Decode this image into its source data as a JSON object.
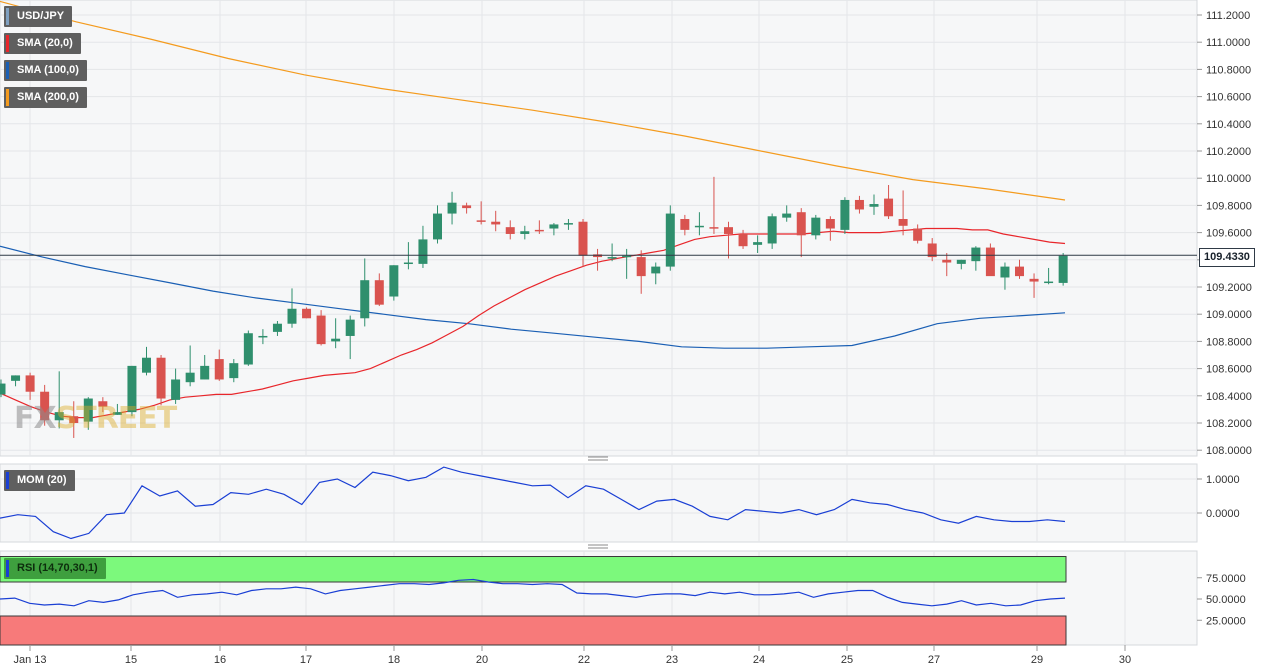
{
  "chart_data": [
    {
      "type": "candlestick",
      "symbol": "USD/JPY",
      "indicators": [
        {
          "name": "SMA (20,0)",
          "color": "#e8262b"
        },
        {
          "name": "SMA (100,0)",
          "color": "#1a5fb4"
        },
        {
          "name": "SMA (200,0)",
          "color": "#f49b1e"
        }
      ],
      "y_ticks": [
        "111.2000",
        "111.0000",
        "110.8000",
        "110.6000",
        "110.4000",
        "110.2000",
        "110.0000",
        "109.8000",
        "109.6000",
        "109.4000",
        "109.2000",
        "109.0000",
        "108.8000",
        "108.6000",
        "108.4000",
        "108.2000",
        "108.0000"
      ],
      "ylim": [
        108.0,
        111.3
      ],
      "x_ticks": [
        "Jan 13",
        "15",
        "16",
        "17",
        "18",
        "20",
        "22",
        "23",
        "24",
        "25",
        "27",
        "29",
        "30"
      ],
      "last_price": "109.4330",
      "candles": [
        {
          "o": 108.41,
          "h": 108.52,
          "l": 108.39,
          "c": 108.49
        },
        {
          "o": 108.51,
          "h": 108.55,
          "l": 108.47,
          "c": 108.55
        },
        {
          "o": 108.55,
          "h": 108.57,
          "l": 108.37,
          "c": 108.43
        },
        {
          "o": 108.43,
          "h": 108.48,
          "l": 108.18,
          "c": 108.22
        },
        {
          "o": 108.22,
          "h": 108.58,
          "l": 108.16,
          "c": 108.28
        },
        {
          "o": 108.25,
          "h": 108.36,
          "l": 108.09,
          "c": 108.2
        },
        {
          "o": 108.21,
          "h": 108.39,
          "l": 108.15,
          "c": 108.38
        },
        {
          "o": 108.36,
          "h": 108.39,
          "l": 108.28,
          "c": 108.32
        },
        {
          "o": 108.26,
          "h": 108.34,
          "l": 108.26,
          "c": 108.28
        },
        {
          "o": 108.28,
          "h": 108.62,
          "l": 108.25,
          "c": 108.62
        },
        {
          "o": 108.57,
          "h": 108.76,
          "l": 108.55,
          "c": 108.68
        },
        {
          "o": 108.68,
          "h": 108.7,
          "l": 108.33,
          "c": 108.38
        },
        {
          "o": 108.37,
          "h": 108.6,
          "l": 108.34,
          "c": 108.52
        },
        {
          "o": 108.5,
          "h": 108.77,
          "l": 108.47,
          "c": 108.57
        },
        {
          "o": 108.52,
          "h": 108.7,
          "l": 108.52,
          "c": 108.62
        },
        {
          "o": 108.67,
          "h": 108.74,
          "l": 108.51,
          "c": 108.52
        },
        {
          "o": 108.53,
          "h": 108.67,
          "l": 108.5,
          "c": 108.64
        },
        {
          "o": 108.63,
          "h": 108.88,
          "l": 108.62,
          "c": 108.86
        },
        {
          "o": 108.84,
          "h": 108.89,
          "l": 108.78,
          "c": 108.84
        },
        {
          "o": 108.87,
          "h": 108.95,
          "l": 108.84,
          "c": 108.93
        },
        {
          "o": 108.93,
          "h": 109.19,
          "l": 108.9,
          "c": 109.04
        },
        {
          "o": 109.04,
          "h": 109.05,
          "l": 108.97,
          "c": 108.97
        },
        {
          "o": 108.99,
          "h": 109.03,
          "l": 108.77,
          "c": 108.78
        },
        {
          "o": 108.8,
          "h": 108.97,
          "l": 108.75,
          "c": 108.82
        },
        {
          "o": 108.84,
          "h": 108.99,
          "l": 108.67,
          "c": 108.96
        },
        {
          "o": 108.97,
          "h": 109.41,
          "l": 108.91,
          "c": 109.25
        },
        {
          "o": 109.25,
          "h": 109.3,
          "l": 109.06,
          "c": 109.07
        },
        {
          "o": 109.13,
          "h": 109.36,
          "l": 109.1,
          "c": 109.36
        },
        {
          "o": 109.38,
          "h": 109.53,
          "l": 109.33,
          "c": 109.38
        },
        {
          "o": 109.37,
          "h": 109.65,
          "l": 109.34,
          "c": 109.55
        },
        {
          "o": 109.55,
          "h": 109.8,
          "l": 109.52,
          "c": 109.74
        },
        {
          "o": 109.74,
          "h": 109.9,
          "l": 109.66,
          "c": 109.82
        },
        {
          "o": 109.8,
          "h": 109.82,
          "l": 109.74,
          "c": 109.78
        },
        {
          "o": 109.69,
          "h": 109.83,
          "l": 109.66,
          "c": 109.68
        },
        {
          "o": 109.68,
          "h": 109.76,
          "l": 109.61,
          "c": 109.66
        },
        {
          "o": 109.64,
          "h": 109.69,
          "l": 109.55,
          "c": 109.59
        },
        {
          "o": 109.59,
          "h": 109.65,
          "l": 109.55,
          "c": 109.61
        },
        {
          "o": 109.62,
          "h": 109.69,
          "l": 109.59,
          "c": 109.61
        },
        {
          "o": 109.63,
          "h": 109.67,
          "l": 109.58,
          "c": 109.66
        },
        {
          "o": 109.66,
          "h": 109.7,
          "l": 109.62,
          "c": 109.67
        },
        {
          "o": 109.68,
          "h": 109.7,
          "l": 109.35,
          "c": 109.43
        },
        {
          "o": 109.44,
          "h": 109.48,
          "l": 109.32,
          "c": 109.42
        },
        {
          "o": 109.42,
          "h": 109.52,
          "l": 109.39,
          "c": 109.42
        },
        {
          "o": 109.42,
          "h": 109.48,
          "l": 109.26,
          "c": 109.43
        },
        {
          "o": 109.42,
          "h": 109.47,
          "l": 109.15,
          "c": 109.28
        },
        {
          "o": 109.3,
          "h": 109.38,
          "l": 109.22,
          "c": 109.35
        },
        {
          "o": 109.35,
          "h": 109.8,
          "l": 109.32,
          "c": 109.74
        },
        {
          "o": 109.7,
          "h": 109.73,
          "l": 109.58,
          "c": 109.62
        },
        {
          "o": 109.65,
          "h": 109.75,
          "l": 109.58,
          "c": 109.65
        },
        {
          "o": 109.64,
          "h": 110.01,
          "l": 109.59,
          "c": 109.63
        },
        {
          "o": 109.64,
          "h": 109.68,
          "l": 109.41,
          "c": 109.59
        },
        {
          "o": 109.59,
          "h": 109.62,
          "l": 109.48,
          "c": 109.5
        },
        {
          "o": 109.51,
          "h": 109.58,
          "l": 109.45,
          "c": 109.53
        },
        {
          "o": 109.52,
          "h": 109.74,
          "l": 109.48,
          "c": 109.72
        },
        {
          "o": 109.71,
          "h": 109.8,
          "l": 109.68,
          "c": 109.74
        },
        {
          "o": 109.75,
          "h": 109.78,
          "l": 109.42,
          "c": 109.58
        },
        {
          "o": 109.58,
          "h": 109.73,
          "l": 109.55,
          "c": 109.71
        },
        {
          "o": 109.7,
          "h": 109.72,
          "l": 109.54,
          "c": 109.63
        },
        {
          "o": 109.62,
          "h": 109.86,
          "l": 109.59,
          "c": 109.84
        },
        {
          "o": 109.84,
          "h": 109.87,
          "l": 109.74,
          "c": 109.77
        },
        {
          "o": 109.79,
          "h": 109.88,
          "l": 109.73,
          "c": 109.81
        },
        {
          "o": 109.85,
          "h": 109.95,
          "l": 109.7,
          "c": 109.72
        },
        {
          "o": 109.7,
          "h": 109.91,
          "l": 109.58,
          "c": 109.65
        },
        {
          "o": 109.63,
          "h": 109.66,
          "l": 109.52,
          "c": 109.54
        },
        {
          "o": 109.52,
          "h": 109.56,
          "l": 109.39,
          "c": 109.42
        },
        {
          "o": 109.4,
          "h": 109.45,
          "l": 109.28,
          "c": 109.38
        },
        {
          "o": 109.37,
          "h": 109.4,
          "l": 109.33,
          "c": 109.4
        },
        {
          "o": 109.39,
          "h": 109.5,
          "l": 109.32,
          "c": 109.49
        },
        {
          "o": 109.49,
          "h": 109.52,
          "l": 109.29,
          "c": 109.28
        },
        {
          "o": 109.27,
          "h": 109.38,
          "l": 109.18,
          "c": 109.35
        },
        {
          "o": 109.35,
          "h": 109.4,
          "l": 109.26,
          "c": 109.28
        },
        {
          "o": 109.26,
          "h": 109.3,
          "l": 109.12,
          "c": 109.24
        },
        {
          "o": 109.23,
          "h": 109.34,
          "l": 109.22,
          "c": 109.24
        },
        {
          "o": 109.23,
          "h": 109.45,
          "l": 109.21,
          "c": 109.43
        }
      ],
      "sma20": [
        108.42,
        108.37,
        108.32,
        108.28,
        108.25,
        108.24,
        108.24,
        108.26,
        108.28,
        108.3,
        108.33,
        108.37,
        108.39,
        108.4,
        108.41,
        108.41,
        108.43,
        108.45,
        108.48,
        108.51,
        108.53,
        108.55,
        108.56,
        108.57,
        108.6,
        108.65,
        108.7,
        108.74,
        108.79,
        108.85,
        108.91,
        108.99,
        109.06,
        109.12,
        109.18,
        109.23,
        109.28,
        109.32,
        109.36,
        109.39,
        109.41,
        109.43,
        109.45,
        109.47,
        109.51,
        109.55,
        109.57,
        109.58,
        109.59,
        109.59,
        109.59,
        109.59,
        109.59,
        109.6,
        109.61,
        109.6,
        109.6,
        109.6,
        109.61,
        109.62,
        109.63,
        109.63,
        109.63,
        109.62,
        109.62,
        109.59,
        109.57,
        109.55,
        109.53,
        109.52
      ],
      "sma100": [
        109.5,
        109.42,
        109.35,
        109.29,
        109.23,
        109.17,
        109.12,
        109.08,
        109.04,
        109.0,
        108.96,
        108.93,
        108.89,
        108.86,
        108.83,
        108.8,
        108.76,
        108.75,
        108.75,
        108.76,
        108.77,
        108.84,
        108.93,
        108.97,
        108.99,
        109.01
      ],
      "sma200": [
        111.3,
        111.15,
        111.02,
        110.88,
        110.76,
        110.66,
        110.58,
        110.5,
        110.41,
        110.31,
        110.2,
        110.09,
        109.99,
        109.92,
        109.84
      ],
      "mom": {
        "y_ticks": [
          "1.0000",
          "0.0000"
        ],
        "ylim": [
          -0.9,
          1.4
        ],
        "values": [
          -0.15,
          -0.05,
          -0.1,
          -0.55,
          -0.75,
          -0.6,
          -0.05,
          0.0,
          0.8,
          0.5,
          0.65,
          0.2,
          0.25,
          0.6,
          0.55,
          0.7,
          0.55,
          0.25,
          0.9,
          1.0,
          0.75,
          1.2,
          1.1,
          0.95,
          1.05,
          1.35,
          1.2,
          1.1,
          1.0,
          0.9,
          0.8,
          0.82,
          0.45,
          0.8,
          0.7,
          0.4,
          0.1,
          0.35,
          0.4,
          0.2,
          -0.1,
          -0.2,
          0.1,
          0.05,
          0.0,
          0.1,
          -0.05,
          0.1,
          0.4,
          0.3,
          0.25,
          0.1,
          0.0,
          -0.2,
          -0.3,
          -0.1,
          -0.2,
          -0.25,
          -0.25,
          -0.2,
          -0.25
        ]
      },
      "rsi": {
        "name": "RSI (14,70,30,1)",
        "y_ticks": [
          "75.0000",
          "50.0000",
          "25.0000"
        ],
        "ylim": [
          0,
          100
        ],
        "overbought": 70,
        "oversold": 30,
        "values": [
          50,
          51,
          45,
          43,
          44,
          42,
          48,
          46,
          49,
          55,
          58,
          60,
          52,
          55,
          56,
          58,
          55,
          60,
          62,
          62,
          64,
          62,
          56,
          60,
          62,
          64,
          66,
          68,
          68,
          67,
          69,
          72,
          73,
          70,
          68,
          68,
          67,
          68,
          67,
          57,
          56,
          56,
          54,
          52,
          55,
          56,
          56,
          54,
          58,
          56,
          58,
          55,
          55,
          56,
          58,
          52,
          56,
          58,
          60,
          60,
          52,
          46,
          44,
          42,
          44,
          48,
          43,
          45,
          42,
          43,
          48,
          50,
          51
        ]
      }
    }
  ]
}
